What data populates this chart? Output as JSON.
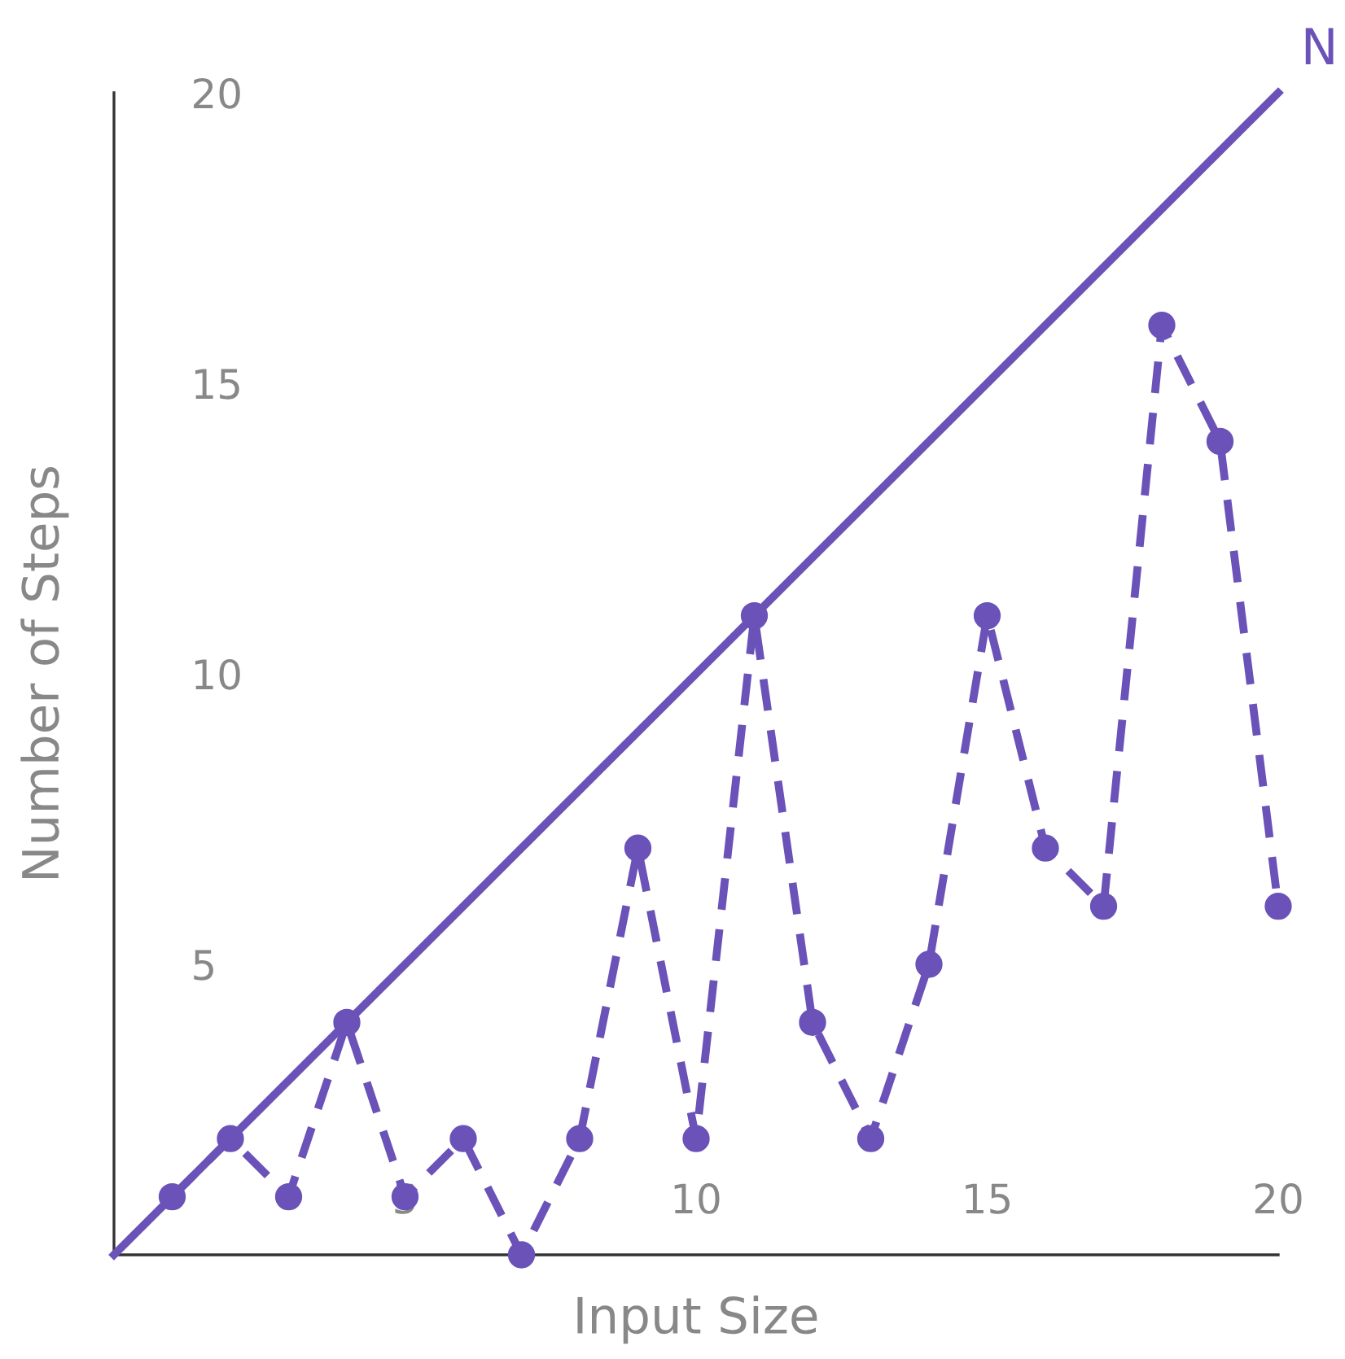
{
  "chart_data": {
    "type": "line",
    "xlabel": "Input Size",
    "ylabel": "Number of Steps",
    "series": [
      {
        "name": "N",
        "color": "#6a52b8",
        "x": [
          0,
          20
        ],
        "values": [
          0,
          20
        ],
        "marker": "none",
        "line_style": "solid"
      },
      {
        "color": "#6a52b8",
        "x": [
          1,
          2,
          3,
          4,
          5,
          6,
          7,
          8,
          9,
          10,
          11,
          12,
          13,
          14,
          15,
          16,
          17,
          18,
          19,
          20
        ],
        "values": [
          1,
          2,
          1,
          4,
          1,
          2,
          0,
          2,
          7,
          2,
          11,
          4,
          2,
          5,
          11,
          7,
          6,
          16,
          14,
          6
        ],
        "marker": "circle",
        "line_style": "dashed"
      }
    ],
    "xlim": [
      0,
      20
    ],
    "ylim": [
      0,
      20
    ],
    "xticks": [
      5,
      10,
      15,
      20
    ],
    "yticks": [
      5,
      10,
      15,
      20
    ],
    "grid": false,
    "legend": false
  }
}
